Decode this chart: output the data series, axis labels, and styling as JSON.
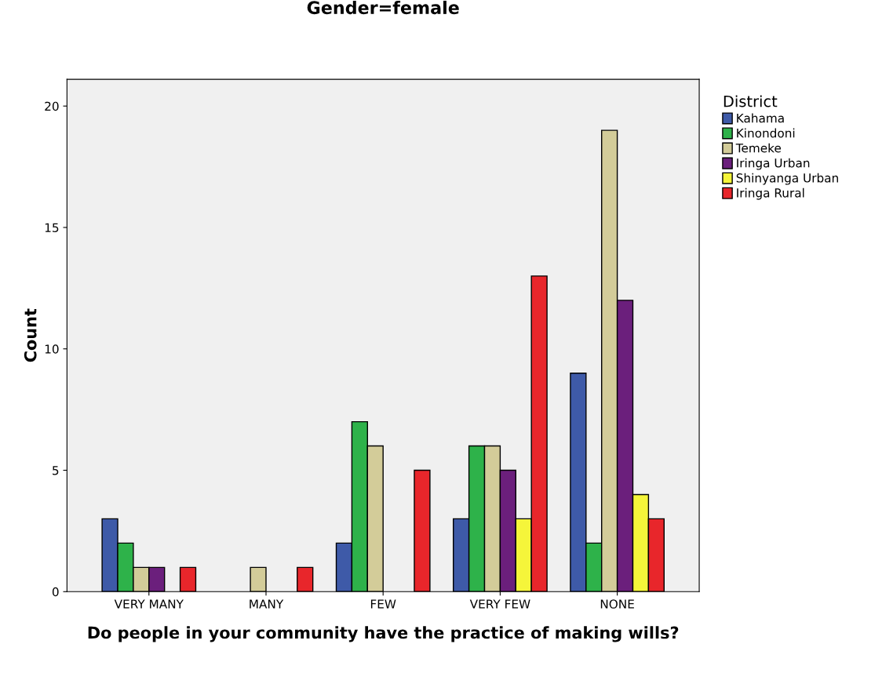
{
  "chart_data": {
    "type": "bar",
    "title": "Gender=female",
    "xlabel": "Do people in your community have the practice of making wills?",
    "ylabel": "Count",
    "legend_title": "District",
    "legend": "right",
    "categories": [
      "VERY MANY",
      "MANY",
      "FEW",
      "VERY FEW",
      "NONE"
    ],
    "series": [
      {
        "name": "Kahama",
        "color": "#3e5aa8",
        "values": [
          3,
          null,
          2,
          3,
          9
        ]
      },
      {
        "name": "Kinondoni",
        "color": "#2eb24a",
        "values": [
          2,
          null,
          7,
          6,
          2
        ]
      },
      {
        "name": "Temeke",
        "color": "#d3cc99",
        "values": [
          1,
          1,
          6,
          6,
          19
        ]
      },
      {
        "name": "Iringa Urban",
        "color": "#6b1f7c",
        "values": [
          1,
          null,
          null,
          5,
          12
        ]
      },
      {
        "name": "Shinyanga Urban",
        "color": "#f5f53a",
        "values": [
          null,
          null,
          null,
          3,
          4
        ]
      },
      {
        "name": "Iringa Rural",
        "color": "#e8262b",
        "values": [
          1,
          1,
          5,
          13,
          3
        ]
      }
    ],
    "ylim": [
      0,
      21.1
    ],
    "yticks": [
      0,
      5,
      10,
      15,
      20
    ],
    "grid": false
  }
}
